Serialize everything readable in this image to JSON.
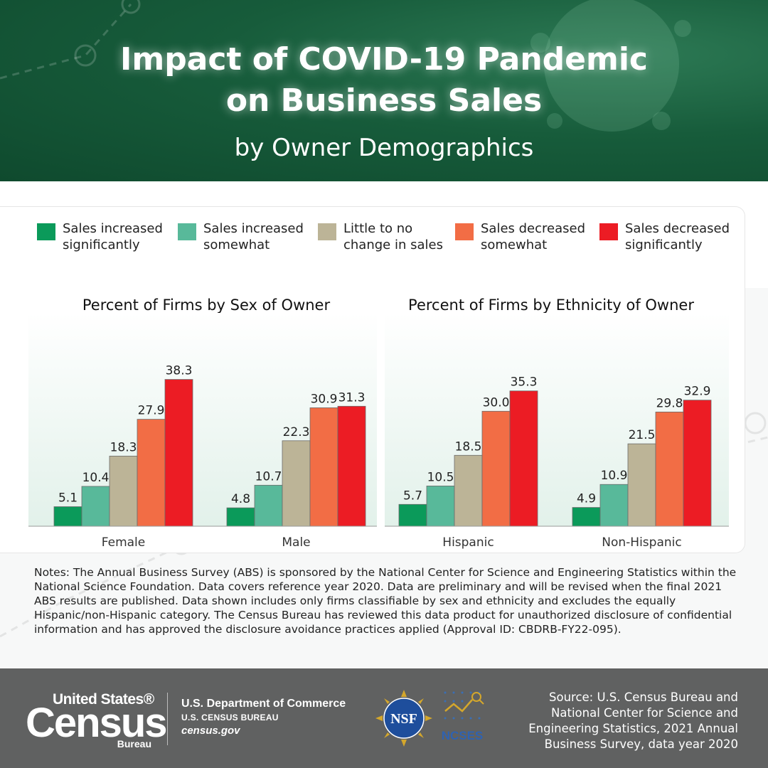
{
  "header": {
    "title_line1": "Impact of COVID-19 Pandemic",
    "title_line2": "on Business Sales",
    "subtitle": "by Owner Demographics"
  },
  "legend": [
    {
      "line1": "Sales increased",
      "line2": "significantly",
      "color": "#0b9a5a"
    },
    {
      "line1": "Sales increased",
      "line2": "somewhat",
      "color": "#58b99a"
    },
    {
      "line1": "Little to no",
      "line2": "change in sales",
      "color": "#bcb497"
    },
    {
      "line1": "Sales decreased",
      "line2": "somewhat",
      "color": "#f26d45"
    },
    {
      "line1": "Sales decreased",
      "line2": "significantly",
      "color": "#ec1c24"
    }
  ],
  "chart_data": [
    {
      "type": "bar",
      "title": "Percent of Firms by Sex of Owner",
      "categories": [
        "Female",
        "Male"
      ],
      "series": [
        {
          "name": "Sales increased significantly",
          "values": [
            5.1,
            4.8
          ]
        },
        {
          "name": "Sales increased somewhat",
          "values": [
            10.4,
            10.7
          ]
        },
        {
          "name": "Little to no change in sales",
          "values": [
            18.3,
            22.3
          ]
        },
        {
          "name": "Sales decreased somewhat",
          "values": [
            27.9,
            30.9
          ]
        },
        {
          "name": "Sales decreased significantly",
          "values": [
            38.3,
            31.3
          ]
        }
      ],
      "value_labels": [
        [
          "5.1",
          "4.8"
        ],
        [
          "10.4",
          "10.7"
        ],
        [
          "18.3",
          "22.3"
        ],
        [
          "27.9",
          "30.9"
        ],
        [
          "38.3",
          "31.3"
        ]
      ],
      "xlabel": "",
      "ylabel": "",
      "ylim": [
        0,
        40
      ],
      "grid": false,
      "legend": "top"
    },
    {
      "type": "bar",
      "title": "Percent of Firms by Ethnicity of Owner",
      "categories": [
        "Hispanic",
        "Non-Hispanic"
      ],
      "series": [
        {
          "name": "Sales increased significantly",
          "values": [
            5.7,
            4.9
          ]
        },
        {
          "name": "Sales increased somewhat",
          "values": [
            10.5,
            10.9
          ]
        },
        {
          "name": "Little to no change in sales",
          "values": [
            18.5,
            21.5
          ]
        },
        {
          "name": "Sales decreased somewhat",
          "values": [
            30.0,
            29.8
          ]
        },
        {
          "name": "Sales decreased significantly",
          "values": [
            35.3,
            32.9
          ]
        }
      ],
      "value_labels": [
        [
          "5.7",
          "4.9"
        ],
        [
          "10.5",
          "10.9"
        ],
        [
          "18.5",
          "21.5"
        ],
        [
          "30.0",
          "29.8"
        ],
        [
          "35.3",
          "32.9"
        ]
      ],
      "xlabel": "",
      "ylabel": "",
      "ylim": [
        0,
        40
      ],
      "grid": false,
      "legend": "top"
    }
  ],
  "notes": "Notes: The Annual Business Survey (ABS) is sponsored by the National Center for Science and Engineering Statistics within the National Science Foundation. Data covers reference year 2020. Data are preliminary and will be revised when the final 2021 ABS results are published. Data shown includes only firms classifiable by sex and ethnicity and excludes the equally Hispanic/non-Hispanic category. The Census Bureau has reviewed this data product for unauthorized disclosure of confidential information and has approved the disclosure avoidance practices applied (Approval ID: CBDRB-FY22-095).",
  "footer": {
    "logo_united_states": "United States®",
    "logo_census": "Census",
    "logo_bureau": "Bureau",
    "dept_line1": "U.S. Department of Commerce",
    "dept_line2": "U.S. CENSUS BUREAU",
    "dept_line3": "census.gov",
    "nsf_label": "NSF",
    "ncses_label": "NCSES",
    "source": "Source: U.S. Census Bureau and National Center for Science and Engineering Statistics, 2021 Annual Business Survey, data year 2020"
  },
  "colors": {
    "header_green": "#175c3b",
    "footer_gray": "#606161"
  }
}
